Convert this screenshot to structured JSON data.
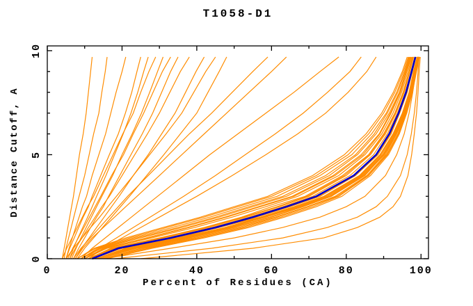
{
  "chart_data": {
    "type": "line",
    "title": "T1058-D1",
    "xlabel": "Percent of Residues (CA)",
    "ylabel": "Distance Cutoff, A",
    "xlim": [
      0,
      102
    ],
    "ylim": [
      0,
      10.23
    ],
    "grid": false,
    "legend": "none",
    "xticks_major": [
      0,
      20,
      40,
      60,
      80,
      100
    ],
    "xtick_labels": [
      "0",
      "20",
      "40",
      "60",
      "80",
      "100"
    ],
    "xticks_minor": [
      10,
      30,
      50,
      70,
      90
    ],
    "yticks_major": [
      0,
      5,
      10
    ],
    "ytick_labels": [
      "0",
      "5",
      "10"
    ],
    "yticks_minor": [
      1,
      2,
      3,
      4,
      6,
      7,
      8,
      9
    ],
    "colors": {
      "models": "#ff8c00",
      "highlight": "#0000cd",
      "axis": "#000000",
      "background": "#ffffff"
    },
    "cutoffs": [
      0,
      0.5,
      1,
      1.5,
      2,
      2.5,
      3,
      4,
      5,
      6,
      7,
      8,
      9,
      9.7
    ],
    "highlight_curve": [
      12,
      19,
      33,
      45,
      55,
      64,
      72,
      82,
      88,
      91.5,
      94,
      96,
      97.5,
      98.5
    ],
    "model_curves": [
      [
        13,
        21,
        35,
        46,
        57,
        66,
        74,
        83.5,
        89,
        92.5,
        95,
        96.8,
        98,
        99
      ],
      [
        11,
        17,
        30,
        42,
        52,
        60,
        69,
        79,
        86,
        90,
        93,
        95.2,
        96.8,
        97.8
      ],
      [
        14,
        23,
        37,
        49,
        58,
        68,
        75.5,
        84.5,
        90,
        93,
        95.5,
        97.2,
        98.3,
        99.2
      ],
      [
        10,
        15,
        27,
        38,
        48,
        57,
        66,
        77,
        84.5,
        89,
        92,
        94.5,
        96.2,
        97.4
      ],
      [
        12,
        20,
        34,
        46,
        56,
        65,
        73,
        82.5,
        88.5,
        92,
        94.3,
        96.3,
        97.7,
        98.7
      ],
      [
        9,
        14,
        24,
        35,
        45,
        54,
        63,
        74.5,
        82.5,
        87.5,
        91,
        93.8,
        95.8,
        97
      ],
      [
        15,
        25,
        39,
        51,
        61,
        69.5,
        77,
        85.5,
        90.5,
        93.5,
        95.8,
        97.4,
        98.5,
        99.4
      ],
      [
        11,
        18,
        31,
        43,
        53,
        62,
        70,
        80,
        86.5,
        90.5,
        93.3,
        95.5,
        97,
        98
      ],
      [
        13,
        22,
        36,
        48,
        58,
        67,
        74.5,
        84,
        89.5,
        92.8,
        95.2,
        97,
        98.1,
        99.1
      ],
      [
        8,
        13,
        22,
        32,
        42,
        51,
        60,
        72,
        80.5,
        86,
        90,
        93,
        95.3,
        96.6
      ],
      [
        12,
        19.5,
        33.5,
        45.5,
        55.5,
        64.5,
        72.5,
        82,
        88,
        91.7,
        94.1,
        96.1,
        97.6,
        98.6
      ],
      [
        14,
        24,
        38,
        50,
        60,
        68.5,
        76,
        85,
        90,
        93.2,
        95.6,
        97.3,
        98.4,
        99.3
      ],
      [
        10,
        16,
        28,
        39.5,
        49.5,
        58.5,
        67,
        78,
        85,
        89.5,
        92.5,
        94.8,
        96.5,
        97.6
      ],
      [
        16,
        27,
        41,
        53,
        62.5,
        71,
        78,
        86,
        91,
        94,
        96,
        97.6,
        98.7,
        99.5
      ],
      [
        11,
        17.5,
        30.5,
        42.5,
        52.5,
        61.5,
        69.5,
        79.5,
        86.2,
        90.2,
        93.1,
        95.3,
        96.9,
        97.9
      ],
      [
        9,
        14.5,
        25,
        36,
        46,
        55,
        64,
        75.5,
        83,
        88,
        91.5,
        94.2,
        96,
        97.2
      ],
      [
        13,
        21.5,
        35.5,
        47.5,
        57.5,
        66.5,
        74,
        83.8,
        89.2,
        92.6,
        95.1,
        96.9,
        98,
        99
      ],
      [
        12,
        20,
        33,
        45,
        55.2,
        64.2,
        72.2,
        82.2,
        88.2,
        91.8,
        94.2,
        96.2,
        97.6,
        98.6
      ],
      [
        10,
        15.5,
        26.5,
        37.5,
        47.5,
        56.5,
        65.5,
        76.5,
        84,
        88.8,
        91.8,
        94.4,
        96.1,
        97.3
      ],
      [
        15,
        26,
        40,
        52,
        61.5,
        70,
        77.5,
        85.8,
        90.8,
        93.8,
        95.9,
        97.5,
        98.6,
        99.4
      ],
      [
        8,
        12.5,
        21,
        31,
        41,
        50,
        59,
        71,
        79.5,
        85.3,
        89.5,
        92.6,
        95,
        96.3
      ],
      [
        14,
        23.5,
        37.5,
        49.5,
        59.5,
        68.3,
        75.8,
        84.8,
        90.2,
        93.4,
        95.7,
        97.3,
        98.4,
        99.3
      ],
      [
        11,
        18.5,
        32,
        44,
        54,
        63,
        71,
        81,
        87.3,
        91,
        93.7,
        95.8,
        97.3,
        98.3
      ],
      [
        13,
        22.5,
        36.5,
        48.5,
        58.5,
        67.5,
        75,
        84.3,
        89.8,
        93,
        95.4,
        97.1,
        98.2,
        99.1
      ],
      [
        9,
        13.5,
        23,
        33.5,
        43.5,
        52.5,
        61.5,
        73,
        81.5,
        86.8,
        90.7,
        93.5,
        95.6,
        96.8
      ],
      [
        16,
        28,
        42,
        54,
        63.5,
        72,
        78.8,
        86.5,
        91.3,
        94.2,
        96.2,
        97.7,
        98.8,
        99.6
      ],
      [
        25,
        55,
        74,
        83,
        89,
        92.5,
        94.5,
        96.5,
        97.5,
        98.2,
        98.8,
        99.2,
        99.5,
        99.8
      ],
      [
        18,
        44,
        63,
        75,
        83,
        88,
        91,
        94.5,
        96.3,
        97.4,
        98.2,
        98.8,
        99.2,
        99.5
      ],
      [
        15,
        33,
        50,
        63,
        73,
        80,
        85,
        90.5,
        93.5,
        95.5,
        96.8,
        97.8,
        98.6,
        99
      ],
      [
        4,
        4.5,
        5,
        5.5,
        6,
        6.5,
        7,
        7.8,
        8.6,
        9.6,
        10.4,
        11,
        11.6,
        12
      ],
      [
        4.5,
        5,
        5.7,
        6.4,
        7.1,
        7.8,
        8.5,
        10,
        11.2,
        12.4,
        13.8,
        14.6,
        15.5,
        16
      ],
      [
        5,
        5.8,
        6.7,
        7.6,
        8.5,
        9.4,
        10.5,
        12,
        13.8,
        15.6,
        17,
        18.4,
        20,
        21
      ],
      [
        5,
        6,
        7.2,
        8.4,
        9.6,
        11,
        12,
        14.3,
        16.6,
        19,
        20.9,
        22.6,
        24,
        25
      ],
      [
        6,
        7,
        8.2,
        9.5,
        10.8,
        12,
        13.2,
        15.7,
        18,
        20.3,
        22.4,
        24.2,
        25.8,
        27
      ],
      [
        4,
        5.2,
        6.6,
        8,
        9.4,
        10.8,
        12.4,
        15,
        17.6,
        20.2,
        23,
        25,
        27.2,
        29
      ],
      [
        6.5,
        7.7,
        9,
        10.4,
        11.8,
        13.2,
        14.6,
        17.5,
        20,
        22.7,
        25.2,
        27.4,
        29.5,
        31
      ],
      [
        5.5,
        6.8,
        8.3,
        9.8,
        11.3,
        12.8,
        14.3,
        17.2,
        20.4,
        23,
        25.8,
        28.3,
        30.8,
        33
      ],
      [
        7,
        8.4,
        10,
        11.6,
        13.2,
        15,
        16.4,
        19.4,
        22.4,
        25.4,
        28.2,
        30.6,
        33,
        35
      ],
      [
        6,
        7.5,
        9.3,
        11,
        12.8,
        14.6,
        16.6,
        20,
        23.4,
        26.8,
        30,
        32.8,
        35.6,
        38
      ],
      [
        7.5,
        9.2,
        11.2,
        13.2,
        15.2,
        17.2,
        19.2,
        23,
        27,
        30.6,
        34.2,
        37,
        39.8,
        42
      ],
      [
        5,
        7,
        9.3,
        11.6,
        14,
        16.2,
        18.5,
        23,
        27.4,
        31.8,
        36,
        39.2,
        42.4,
        45
      ],
      [
        8,
        10,
        12.4,
        14.8,
        17.2,
        19.6,
        22,
        26.6,
        31.2,
        35.6,
        40,
        43,
        46,
        48
      ],
      [
        7,
        9,
        11.5,
        14,
        16.5,
        19,
        21.5,
        27,
        32.5,
        38,
        44,
        49.5,
        55,
        59
      ],
      [
        7.5,
        9.5,
        12,
        15,
        18,
        21,
        24,
        30,
        36,
        42,
        48,
        54,
        60,
        64
      ],
      [
        9,
        12,
        15.5,
        19,
        22.5,
        26,
        29.5,
        36.5,
        43.5,
        51,
        58.5,
        66,
        73,
        78
      ],
      [
        10,
        14,
        18.5,
        23,
        27.5,
        32,
        36.5,
        45,
        53,
        61,
        68.5,
        75,
        81,
        84
      ],
      [
        11,
        15,
        20,
        25,
        30,
        35,
        40,
        49.5,
        58.5,
        67,
        74.5,
        80.5,
        85.5,
        88
      ]
    ]
  }
}
